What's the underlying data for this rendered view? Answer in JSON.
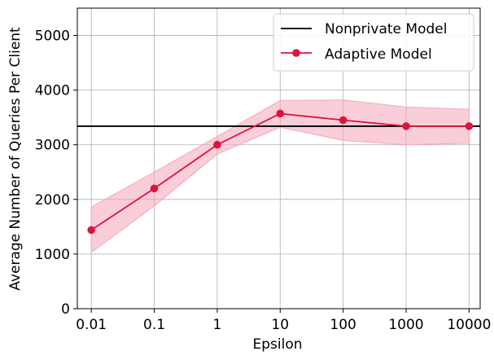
{
  "chart_data": {
    "type": "line",
    "title": "",
    "xlabel": "Epsilon",
    "ylabel": "Average Number of Queries Per Client",
    "x_scale": "log",
    "categories": [
      "0.01",
      "0.1",
      "1",
      "10",
      "100",
      "1000",
      "10000"
    ],
    "xlim": [
      0.006,
      15000
    ],
    "ylim": [
      0,
      5500
    ],
    "yticks": [
      0,
      1000,
      2000,
      3000,
      4000,
      5000
    ],
    "grid": true,
    "legend_position": "top-right",
    "series": [
      {
        "name": "Adaptive Model",
        "x": [
          0.01,
          0.1,
          1,
          10,
          100,
          1000,
          10000
        ],
        "values": [
          1440,
          2200,
          3000,
          3570,
          3450,
          3340,
          3340
        ],
        "band_upper": [
          1860,
          2500,
          3150,
          3810,
          3820,
          3690,
          3650
        ],
        "band_lower": [
          1030,
          1880,
          2830,
          3320,
          3080,
          3000,
          3030
        ],
        "color": "#dc143c",
        "band_color": "#f4a6b8",
        "marker": "circle"
      }
    ],
    "reference_lines": [
      {
        "name": "Nonprivate Model",
        "y": 3340,
        "color": "#000000"
      }
    ]
  }
}
